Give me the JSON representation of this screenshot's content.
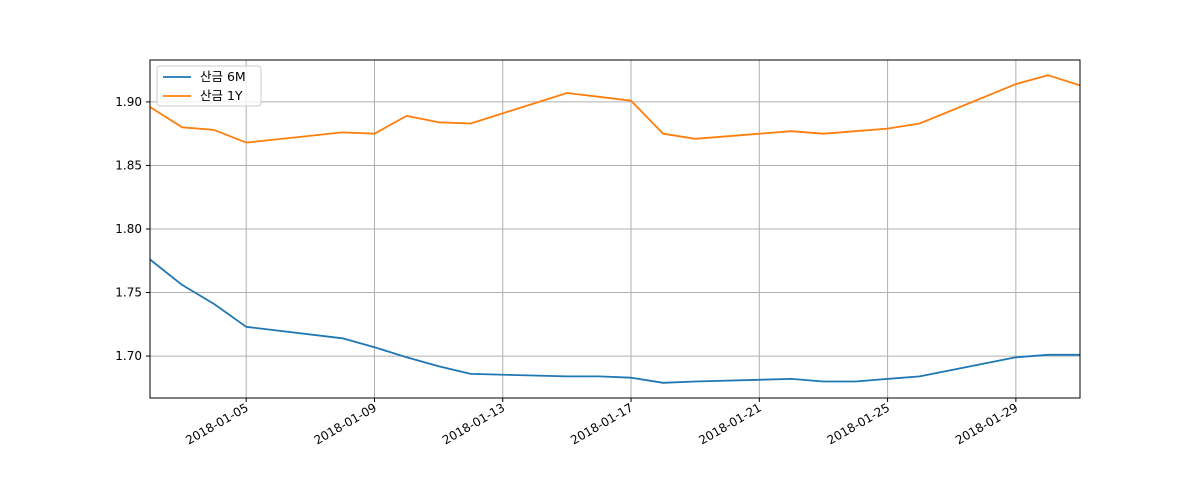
{
  "chart_data": {
    "type": "line",
    "title": "",
    "xlabel": "",
    "ylabel": "",
    "x": [
      "2018-01-02",
      "2018-01-03",
      "2018-01-04",
      "2018-01-05",
      "2018-01-08",
      "2018-01-09",
      "2018-01-10",
      "2018-01-11",
      "2018-01-12",
      "2018-01-15",
      "2018-01-16",
      "2018-01-17",
      "2018-01-18",
      "2018-01-19",
      "2018-01-22",
      "2018-01-23",
      "2018-01-24",
      "2018-01-25",
      "2018-01-26",
      "2018-01-29",
      "2018-01-30",
      "2018-01-31"
    ],
    "series": [
      {
        "name": "산금 6M",
        "color": "#1f77b4",
        "values": [
          1.776,
          1.756,
          1.741,
          1.723,
          1.714,
          1.707,
          1.699,
          1.692,
          1.686,
          1.684,
          1.684,
          1.683,
          1.679,
          1.68,
          1.682,
          1.68,
          1.68,
          1.682,
          1.684,
          1.699,
          1.701,
          1.701
        ]
      },
      {
        "name": "산금 1Y",
        "color": "#ff7f0e",
        "values": [
          1.896,
          1.88,
          1.878,
          1.868,
          1.876,
          1.875,
          1.889,
          1.884,
          1.883,
          1.907,
          1.904,
          1.901,
          1.875,
          1.871,
          1.877,
          1.875,
          1.877,
          1.879,
          1.883,
          1.914,
          1.921,
          1.913
        ]
      }
    ],
    "xlim": [
      "2018-01-02",
      "2018-01-31"
    ],
    "ylim": [
      1.667,
      1.933
    ],
    "xticks": [
      "2018-01-05",
      "2018-01-09",
      "2018-01-13",
      "2018-01-17",
      "2018-01-21",
      "2018-01-25",
      "2018-01-29"
    ],
    "yticks": [
      "1.70",
      "1.75",
      "1.80",
      "1.85",
      "1.90"
    ],
    "grid": true,
    "legend_position": "upper left"
  }
}
